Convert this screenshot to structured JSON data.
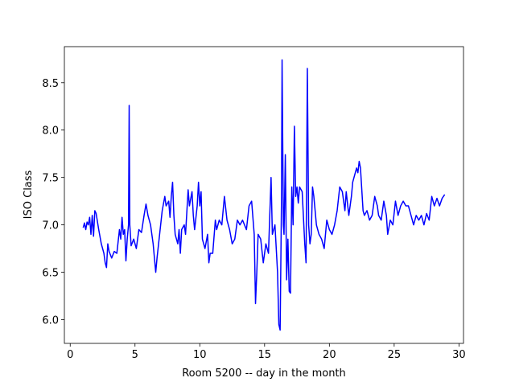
{
  "chart_data": {
    "type": "line",
    "xlabel": "Room 5200 -- day in the month",
    "ylabel": "ISO Class",
    "color": "#0000ff",
    "x": [
      1.0,
      1.1,
      1.2,
      1.3,
      1.4,
      1.5,
      1.6,
      1.7,
      1.8,
      1.9,
      2.0,
      2.2,
      2.4,
      2.6,
      2.7,
      2.8,
      2.9,
      3.0,
      3.2,
      3.4,
      3.6,
      3.8,
      3.9,
      4.0,
      4.1,
      4.2,
      4.3,
      4.4,
      4.5,
      4.55,
      4.6,
      4.7,
      4.9,
      5.1,
      5.3,
      5.5,
      5.7,
      5.85,
      6.0,
      6.2,
      6.4,
      6.5,
      6.6,
      6.7,
      6.9,
      7.1,
      7.3,
      7.4,
      7.6,
      7.7,
      7.8,
      7.9,
      8.0,
      8.1,
      8.3,
      8.4,
      8.5,
      8.6,
      8.8,
      8.9,
      9.1,
      9.2,
      9.4,
      9.5,
      9.6,
      9.8,
      9.9,
      10.0,
      10.1,
      10.2,
      10.4,
      10.6,
      10.7,
      10.8,
      11.0,
      11.2,
      11.3,
      11.5,
      11.7,
      11.9,
      12.1,
      12.3,
      12.5,
      12.7,
      12.9,
      13.1,
      13.3,
      13.6,
      13.8,
      14.0,
      14.2,
      14.3,
      14.4,
      14.5,
      14.7,
      14.9,
      15.1,
      15.3,
      15.5,
      15.6,
      15.8,
      16.0,
      16.1,
      16.2,
      16.3,
      16.35,
      16.45,
      16.5,
      16.6,
      16.7,
      16.8,
      16.9,
      17.0,
      17.1,
      17.2,
      17.3,
      17.4,
      17.5,
      17.6,
      17.7,
      17.9,
      18.1,
      18.2,
      18.3,
      18.4,
      18.5,
      18.6,
      18.7,
      18.8,
      19.0,
      19.2,
      19.4,
      19.6,
      19.8,
      20.0,
      20.2,
      20.4,
      20.6,
      20.8,
      21.0,
      21.2,
      21.3,
      21.5,
      21.7,
      21.8,
      22.0,
      22.1,
      22.2,
      22.3,
      22.4,
      22.6,
      22.7,
      22.9,
      23.1,
      23.3,
      23.5,
      23.7,
      23.8,
      24.0,
      24.2,
      24.4,
      24.5,
      24.7,
      24.9,
      25.1,
      25.3,
      25.5,
      25.7,
      25.9,
      26.1,
      26.3,
      26.5,
      26.7,
      26.9,
      27.1,
      27.3,
      27.5,
      27.7,
      27.9,
      28.1,
      28.3,
      28.5,
      28.7,
      28.9
    ],
    "values": [
      6.97,
      7.02,
      6.95,
      7.03,
      7.0,
      7.08,
      6.9,
      7.1,
      6.88,
      7.15,
      7.12,
      6.95,
      6.8,
      6.7,
      6.6,
      6.55,
      6.8,
      6.72,
      6.65,
      6.72,
      6.7,
      6.95,
      6.85,
      7.08,
      6.9,
      6.95,
      6.62,
      6.85,
      7.0,
      8.26,
      7.0,
      6.78,
      6.85,
      6.75,
      6.95,
      6.92,
      7.1,
      7.22,
      7.1,
      7.0,
      6.8,
      6.65,
      6.5,
      6.65,
      6.9,
      7.15,
      7.3,
      7.2,
      7.25,
      7.08,
      7.3,
      7.45,
      7.1,
      6.9,
      6.8,
      6.95,
      6.7,
      6.95,
      7.0,
      6.9,
      7.37,
      7.2,
      7.35,
      7.1,
      6.95,
      7.2,
      7.45,
      7.2,
      7.35,
      6.85,
      6.75,
      6.9,
      6.6,
      6.7,
      6.7,
      7.05,
      6.95,
      7.05,
      7.0,
      7.3,
      7.05,
      6.95,
      6.8,
      6.85,
      7.05,
      7.0,
      7.05,
      6.95,
      7.2,
      7.25,
      6.9,
      6.17,
      6.5,
      6.9,
      6.85,
      6.6,
      6.8,
      6.7,
      7.5,
      6.9,
      7.0,
      6.5,
      5.95,
      5.89,
      7.2,
      8.74,
      7.0,
      6.9,
      7.74,
      6.42,
      6.85,
      6.3,
      6.28,
      7.4,
      7.0,
      8.04,
      7.3,
      7.4,
      7.23,
      7.4,
      7.35,
      6.8,
      6.6,
      8.65,
      7.0,
      6.8,
      6.9,
      7.4,
      7.3,
      7.0,
      6.9,
      6.85,
      6.75,
      7.05,
      6.95,
      6.9,
      7.0,
      7.15,
      7.4,
      7.35,
      7.15,
      7.35,
      7.1,
      7.3,
      7.45,
      7.55,
      7.6,
      7.55,
      7.67,
      7.6,
      7.15,
      7.1,
      7.15,
      7.05,
      7.1,
      7.3,
      7.2,
      7.1,
      7.05,
      7.25,
      7.1,
      6.9,
      7.05,
      7.0,
      7.25,
      7.1,
      7.2,
      7.25,
      7.2,
      7.2,
      7.1,
      7.0,
      7.1,
      7.05,
      7.1,
      7.0,
      7.12,
      7.05,
      7.3,
      7.2,
      7.28,
      7.2,
      7.28,
      7.32
    ],
    "xlim": [
      -0.45,
      30.35
    ],
    "ylim": [
      5.75,
      8.88
    ],
    "xticks": [
      0,
      5,
      10,
      15,
      20,
      25,
      30
    ],
    "yticks": [
      {
        "value": 6,
        "label": "6.0"
      },
      6.5,
      {
        "value": 7,
        "label": "7.0"
      },
      7.5,
      {
        "value": 8,
        "label": "8.0"
      },
      8.5
    ]
  }
}
